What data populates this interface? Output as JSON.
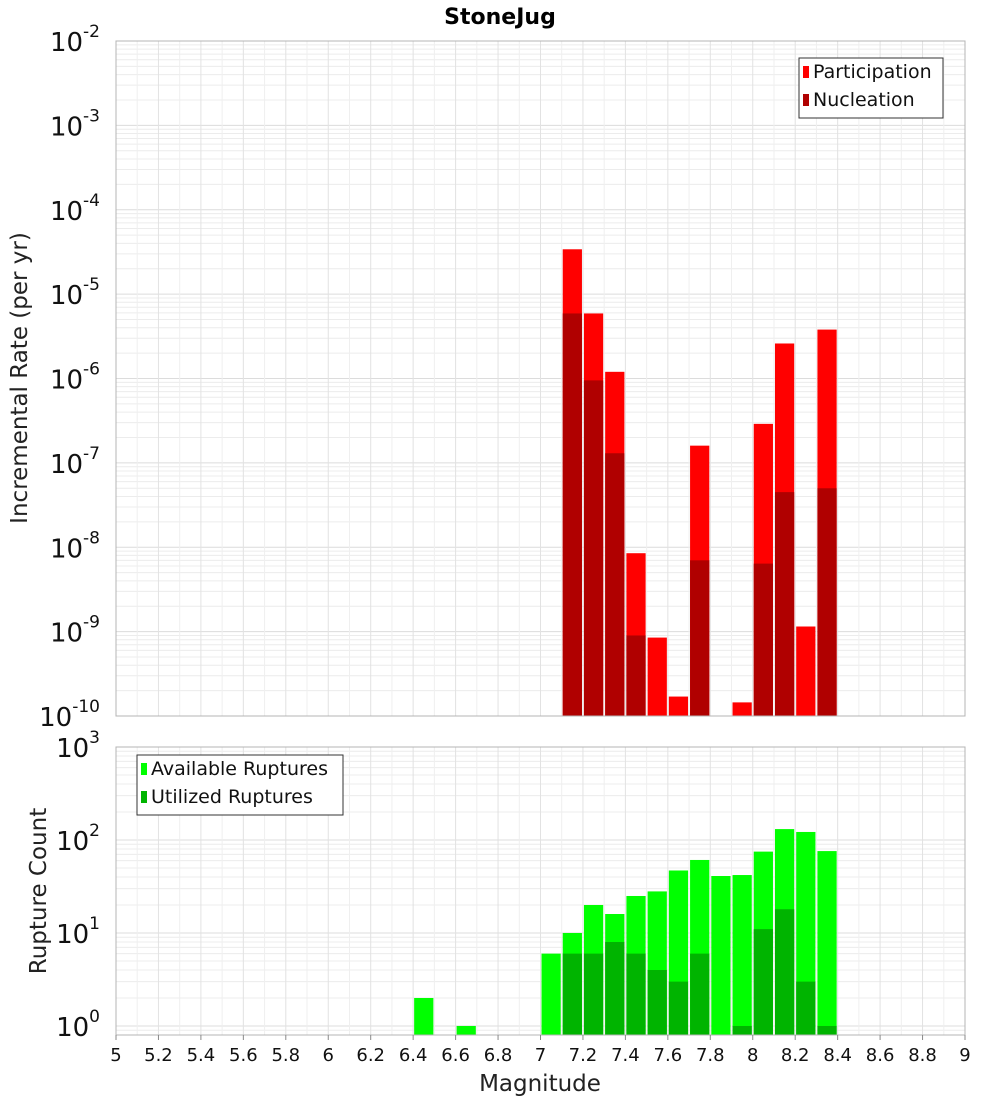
{
  "chart_data": [
    {
      "type": "bar",
      "title": "StoneJug",
      "xlabel": "Magnitude",
      "ylabel": "Incremental Rate (per yr)",
      "yscale": "log",
      "ylim": [
        1e-10,
        0.01
      ],
      "xlim": [
        5,
        9
      ],
      "ytick_exponents": [
        -2,
        -3,
        -4,
        -5,
        -6,
        -7,
        -8,
        -9,
        -10
      ],
      "grid": true,
      "legend_position": "top-right",
      "bar_width": 0.1,
      "series": [
        {
          "name": "Participation",
          "color": "#ff0000",
          "points": [
            [
              7.15,
              3.4e-05
            ],
            [
              7.25,
              5.9e-06
            ],
            [
              7.35,
              1.2e-06
            ],
            [
              7.45,
              8.5e-09
            ],
            [
              7.55,
              8.5e-10
            ],
            [
              7.65,
              1.7e-10
            ],
            [
              7.75,
              1.6e-07
            ],
            [
              7.95,
              1.45e-10
            ],
            [
              8.05,
              2.9e-07
            ],
            [
              8.15,
              2.6e-06
            ],
            [
              8.25,
              1.15e-09
            ],
            [
              8.35,
              3.8e-06
            ]
          ]
        },
        {
          "name": "Nucleation",
          "color": "#b00000",
          "points": [
            [
              7.15,
              5.9e-06
            ],
            [
              7.25,
              9.5e-07
            ],
            [
              7.35,
              1.3e-07
            ],
            [
              7.45,
              9e-10
            ],
            [
              7.75,
              7e-09
            ],
            [
              8.05,
              6.4e-09
            ],
            [
              8.15,
              4.5e-08
            ],
            [
              8.35,
              5e-08
            ]
          ]
        }
      ]
    },
    {
      "type": "bar",
      "xlabel": "Magnitude",
      "ylabel": "Rupture Count",
      "yscale": "log",
      "ylim": [
        0.8,
        1000
      ],
      "xlim": [
        5,
        9
      ],
      "ytick_exponents": [
        3,
        2,
        1,
        0
      ],
      "xticks": [
        "5",
        "5.2",
        "5.4",
        "5.6",
        "5.8",
        "6",
        "6.2",
        "6.4",
        "6.6",
        "6.8",
        "7",
        "7.2",
        "7.4",
        "7.6",
        "7.8",
        "8",
        "8.2",
        "8.4",
        "8.6",
        "8.8",
        "9"
      ],
      "grid": true,
      "legend_position": "top-left",
      "bar_width": 0.1,
      "series": [
        {
          "name": "Available Ruptures",
          "color": "#00ff00",
          "points": [
            [
              6.45,
              2
            ],
            [
              6.65,
              1
            ],
            [
              7.05,
              6
            ],
            [
              7.15,
              10
            ],
            [
              7.25,
              20
            ],
            [
              7.35,
              16
            ],
            [
              7.45,
              25
            ],
            [
              7.55,
              28
            ],
            [
              7.65,
              47
            ],
            [
              7.75,
              61
            ],
            [
              7.85,
              41
            ],
            [
              7.95,
              42
            ],
            [
              8.05,
              75
            ],
            [
              8.15,
              131
            ],
            [
              8.25,
              122
            ],
            [
              8.35,
              76
            ]
          ]
        },
        {
          "name": "Utilized Ruptures",
          "color": "#00b400",
          "points": [
            [
              7.15,
              6
            ],
            [
              7.25,
              6
            ],
            [
              7.35,
              8
            ],
            [
              7.45,
              6
            ],
            [
              7.55,
              4
            ],
            [
              7.65,
              3
            ],
            [
              7.75,
              6
            ],
            [
              7.95,
              1
            ],
            [
              8.05,
              11
            ],
            [
              8.15,
              18
            ],
            [
              8.25,
              3
            ],
            [
              8.35,
              1
            ]
          ]
        }
      ]
    }
  ]
}
